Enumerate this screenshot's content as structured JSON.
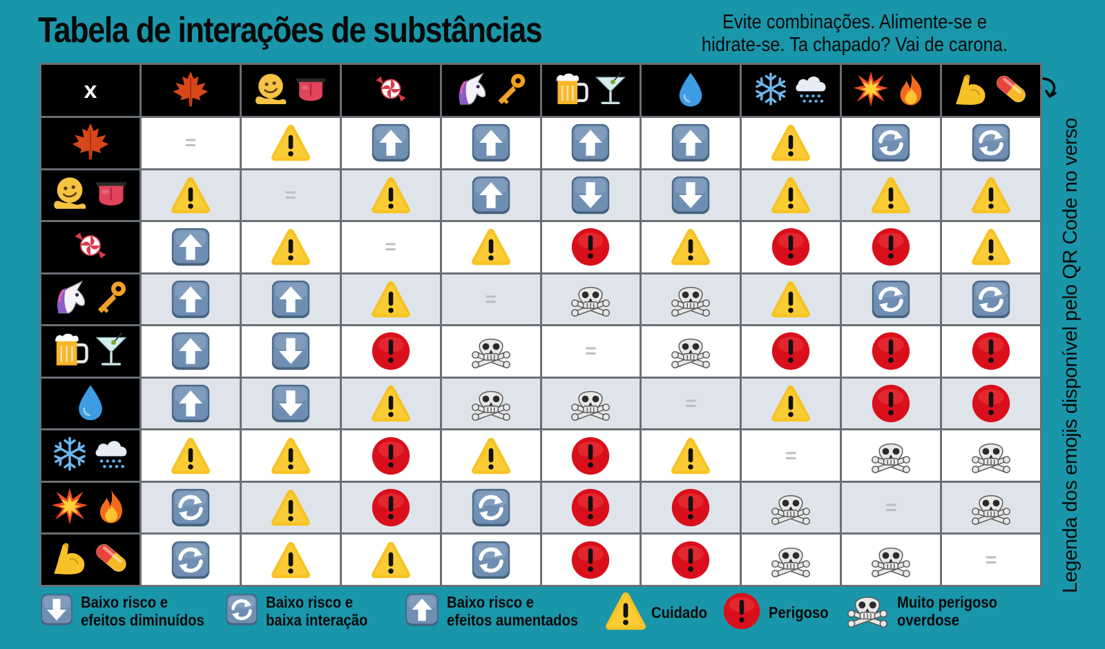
{
  "title": "Tabela de interações de substâncias",
  "subtitle_line1": "Evite combinações. Alimente-se e",
  "subtitle_line2": "hidrate-se. Ta chapado? Vai de carona.",
  "side_note": "Legenda dos emojis disponível pelo QR Code no verso",
  "corner_label": "x",
  "substances": [
    {
      "icons": [
        "maple-leaf"
      ]
    },
    {
      "icons": [
        "melting-face",
        "tongue"
      ]
    },
    {
      "icons": [
        "candy"
      ]
    },
    {
      "icons": [
        "unicorn",
        "key"
      ]
    },
    {
      "icons": [
        "beer-mug",
        "cocktail-glass"
      ]
    },
    {
      "icons": [
        "droplet"
      ]
    },
    {
      "icons": [
        "snowflake",
        "snow-cloud"
      ]
    },
    {
      "icons": [
        "collision",
        "fire"
      ]
    },
    {
      "icons": [
        "flexed-biceps",
        "pill"
      ]
    }
  ],
  "matrix": [
    [
      "same",
      "caution",
      "up",
      "up",
      "up",
      "up",
      "caution",
      "low",
      "low"
    ],
    [
      "caution",
      "same",
      "caution",
      "up",
      "down",
      "down",
      "caution",
      "caution",
      "caution"
    ],
    [
      "up",
      "caution",
      "same",
      "caution",
      "danger",
      "caution",
      "danger",
      "danger",
      "caution"
    ],
    [
      "up",
      "up",
      "caution",
      "same",
      "deadly",
      "deadly",
      "caution",
      "low",
      "low"
    ],
    [
      "up",
      "down",
      "danger",
      "deadly",
      "same",
      "deadly",
      "danger",
      "danger",
      "danger"
    ],
    [
      "up",
      "down",
      "caution",
      "deadly",
      "deadly",
      "same",
      "caution",
      "danger",
      "danger"
    ],
    [
      "caution",
      "caution",
      "danger",
      "caution",
      "danger",
      "caution",
      "same",
      "deadly",
      "deadly"
    ],
    [
      "low",
      "caution",
      "danger",
      "low",
      "danger",
      "danger",
      "deadly",
      "same",
      "deadly"
    ],
    [
      "low",
      "caution",
      "caution",
      "low",
      "danger",
      "danger",
      "deadly",
      "deadly",
      "same"
    ]
  ],
  "same_symbol": "=",
  "legend": {
    "down": {
      "line1": "Baixo risco e",
      "line2": "efeitos diminuídos"
    },
    "low": {
      "line1": "Baixo risco e",
      "line2": "baixa interação"
    },
    "up": {
      "line1": "Baixo risco e",
      "line2": "efeitos aumentados"
    },
    "caution": {
      "line1": "Cuidado",
      "line2": ""
    },
    "danger": {
      "line1": "Perigoso",
      "line2": ""
    },
    "deadly": {
      "line1": "Muito perigoso",
      "line2": "overdose"
    }
  },
  "colors": {
    "background": "#1996aa",
    "header_bg": "#000000",
    "row_light": "#ffffff",
    "row_shade": "#dfe4ea",
    "caution_yellow": "#f7c325",
    "danger_red": "#d9101c",
    "button_blue": "#6f8fb2"
  }
}
